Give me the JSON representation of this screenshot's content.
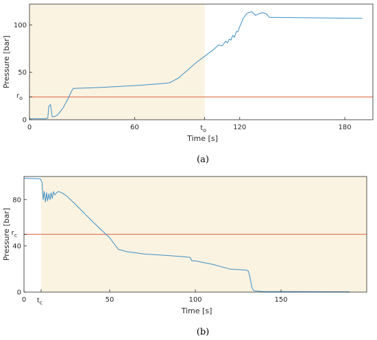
{
  "chart_data": [
    {
      "type": "line",
      "panel_label": "a",
      "xlabel": "Time [s]",
      "ylabel": "Pressure [bar]",
      "xlim": [
        0,
        196
      ],
      "ylim": [
        0,
        122
      ],
      "xticks": [
        {
          "value": 0,
          "label": "0"
        },
        {
          "value": 60,
          "label": "60"
        },
        {
          "value": 120,
          "label": "120"
        },
        {
          "value": 180,
          "label": "180"
        }
      ],
      "yticks": [
        {
          "value": 0,
          "label": "0"
        },
        {
          "value": 50,
          "label": "50"
        },
        {
          "value": 100,
          "label": "100"
        }
      ],
      "special_xtick": {
        "value": 100,
        "label": "t",
        "subscript": "o"
      },
      "special_ytick": {
        "value": 24,
        "label": "r",
        "subscript": "o"
      },
      "shaded_region": {
        "x0": 0,
        "x1": 100,
        "color": "#fbf3e1"
      },
      "threshold_line": {
        "y": 24,
        "color": "#e07b59"
      },
      "line_color": "#3a8dc5",
      "series": [
        {
          "x": [
            0,
            9.5,
            10.5,
            11,
            12,
            13,
            14,
            16,
            19,
            22,
            24,
            25,
            40,
            60,
            75,
            80,
            85,
            90,
            95,
            100,
            105,
            108,
            110,
            112,
            113,
            114,
            115,
            116,
            117,
            118,
            119,
            120,
            122,
            124,
            125,
            127,
            129,
            131,
            133,
            135,
            137,
            140,
            190
          ],
          "y": [
            1,
            1,
            2,
            14,
            16,
            3,
            3,
            5,
            12,
            22,
            30,
            33,
            34,
            36,
            38,
            39,
            44,
            52,
            60,
            67,
            74,
            79,
            78,
            83,
            81,
            85,
            84,
            89,
            87,
            93,
            93,
            98,
            107,
            112,
            113,
            114,
            110,
            112,
            113,
            112,
            108,
            108,
            107
          ]
        }
      ]
    },
    {
      "type": "line",
      "panel_label": "b",
      "xlabel": "Time [s]",
      "ylabel": "Pressure [bar]",
      "xlim": [
        0,
        200
      ],
      "ylim": [
        0,
        100
      ],
      "xticks": [
        {
          "value": 0,
          "label": "0"
        },
        {
          "value": 50,
          "label": "50"
        },
        {
          "value": 100,
          "label": "100"
        },
        {
          "value": 150,
          "label": "150"
        }
      ],
      "yticks": [
        {
          "value": 0,
          "label": "0"
        },
        {
          "value": 40,
          "label": "40"
        },
        {
          "value": 80,
          "label": "80"
        }
      ],
      "special_xtick": {
        "value": 10,
        "label": "t",
        "subscript": "c"
      },
      "special_ytick": {
        "value": 50,
        "label": "r",
        "subscript": "c"
      },
      "shaded_region": {
        "x0": 10,
        "x1": 200,
        "color": "#fbf3e1"
      },
      "threshold_line": {
        "y": 50,
        "color": "#e07b59"
      },
      "line_color": "#3a8dc5",
      "series": [
        {
          "x": [
            0,
            9.5,
            10.5,
            11.2,
            11.8,
            12.5,
            13.2,
            13.8,
            14.5,
            15.2,
            15.8,
            16.5,
            17.2,
            18,
            19,
            20,
            22,
            25,
            30,
            40,
            50,
            55,
            60,
            70,
            80,
            90,
            97,
            98,
            100,
            110,
            120,
            130,
            131,
            132,
            133,
            134,
            135,
            137,
            140,
            150,
            190
          ],
          "y": [
            98.5,
            98,
            95,
            80,
            87,
            78,
            86,
            79,
            85,
            80,
            86,
            81,
            87,
            84,
            86,
            87,
            86,
            83,
            76,
            61,
            47,
            37,
            35,
            33,
            32,
            31,
            30,
            27,
            27,
            24,
            20,
            19,
            18,
            12,
            4,
            1.5,
            1,
            0.8,
            0.5,
            0.4,
            0.3
          ]
        }
      ]
    }
  ],
  "captions": [
    "(a)",
    "(b)"
  ]
}
